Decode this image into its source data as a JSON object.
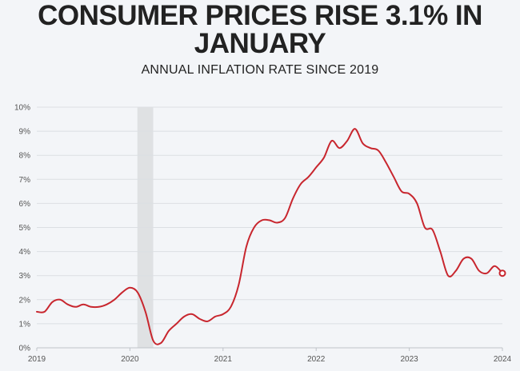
{
  "header": {
    "title_line1": "CONSUMER PRICES RISE 3.1% IN",
    "title_line2": "JANUARY",
    "subtitle": "ANNUAL INFLATION RATE SINCE 2019"
  },
  "colors": {
    "line": "#c8262e",
    "grid": "#dcdfe3",
    "shade": "#dfe1e3",
    "background": "#f3f5f8"
  },
  "chart_data": {
    "type": "line",
    "title": "CONSUMER PRICES RISE 3.1% IN JANUARY",
    "subtitle": "ANNUAL INFLATION RATE SINCE 2019",
    "xlabel": "",
    "ylabel": "",
    "xlim": [
      2019,
      2024
    ],
    "ylim": [
      0,
      10
    ],
    "y_tick_labels": [
      "0%",
      "1%",
      "2%",
      "3%",
      "4%",
      "5%",
      "6%",
      "7%",
      "8%",
      "9%",
      "10%"
    ],
    "x_tick_labels": [
      "2019",
      "2020",
      "2021",
      "2022",
      "2023",
      "2024"
    ],
    "grid": true,
    "shaded_period": {
      "start": 2020.08,
      "end": 2020.25
    },
    "series": [
      {
        "x": [
          2019.0,
          2019.083,
          2019.167,
          2019.25,
          2019.333,
          2019.417,
          2019.5,
          2019.583,
          2019.667,
          2019.75,
          2019.833,
          2019.917,
          2020.0,
          2020.083,
          2020.167,
          2020.25,
          2020.333,
          2020.417,
          2020.5,
          2020.583,
          2020.667,
          2020.75,
          2020.833,
          2020.917,
          2021.0,
          2021.083,
          2021.167,
          2021.25,
          2021.333,
          2021.417,
          2021.5,
          2021.583,
          2021.667,
          2021.75,
          2021.833,
          2021.917,
          2022.0,
          2022.083,
          2022.167,
          2022.25,
          2022.333,
          2022.417,
          2022.5,
          2022.583,
          2022.667,
          2022.75,
          2022.833,
          2022.917,
          2023.0,
          2023.083,
          2023.167,
          2023.25,
          2023.333,
          2023.417,
          2023.5,
          2023.583,
          2023.667,
          2023.75,
          2023.833,
          2023.917,
          2024.0
        ],
        "y": [
          1.5,
          1.5,
          1.9,
          2.0,
          1.8,
          1.7,
          1.8,
          1.7,
          1.7,
          1.8,
          2.0,
          2.3,
          2.5,
          2.3,
          1.5,
          0.3,
          0.2,
          0.7,
          1.0,
          1.3,
          1.4,
          1.2,
          1.1,
          1.3,
          1.4,
          1.7,
          2.6,
          4.2,
          5.0,
          5.3,
          5.3,
          5.2,
          5.4,
          6.2,
          6.8,
          7.1,
          7.5,
          7.9,
          8.6,
          8.3,
          8.6,
          9.1,
          8.5,
          8.3,
          8.2,
          7.7,
          7.1,
          6.5,
          6.4,
          6.0,
          5.0,
          4.9,
          4.0,
          3.0,
          3.2,
          3.7,
          3.7,
          3.2,
          3.1,
          3.4,
          3.1
        ]
      }
    ]
  }
}
